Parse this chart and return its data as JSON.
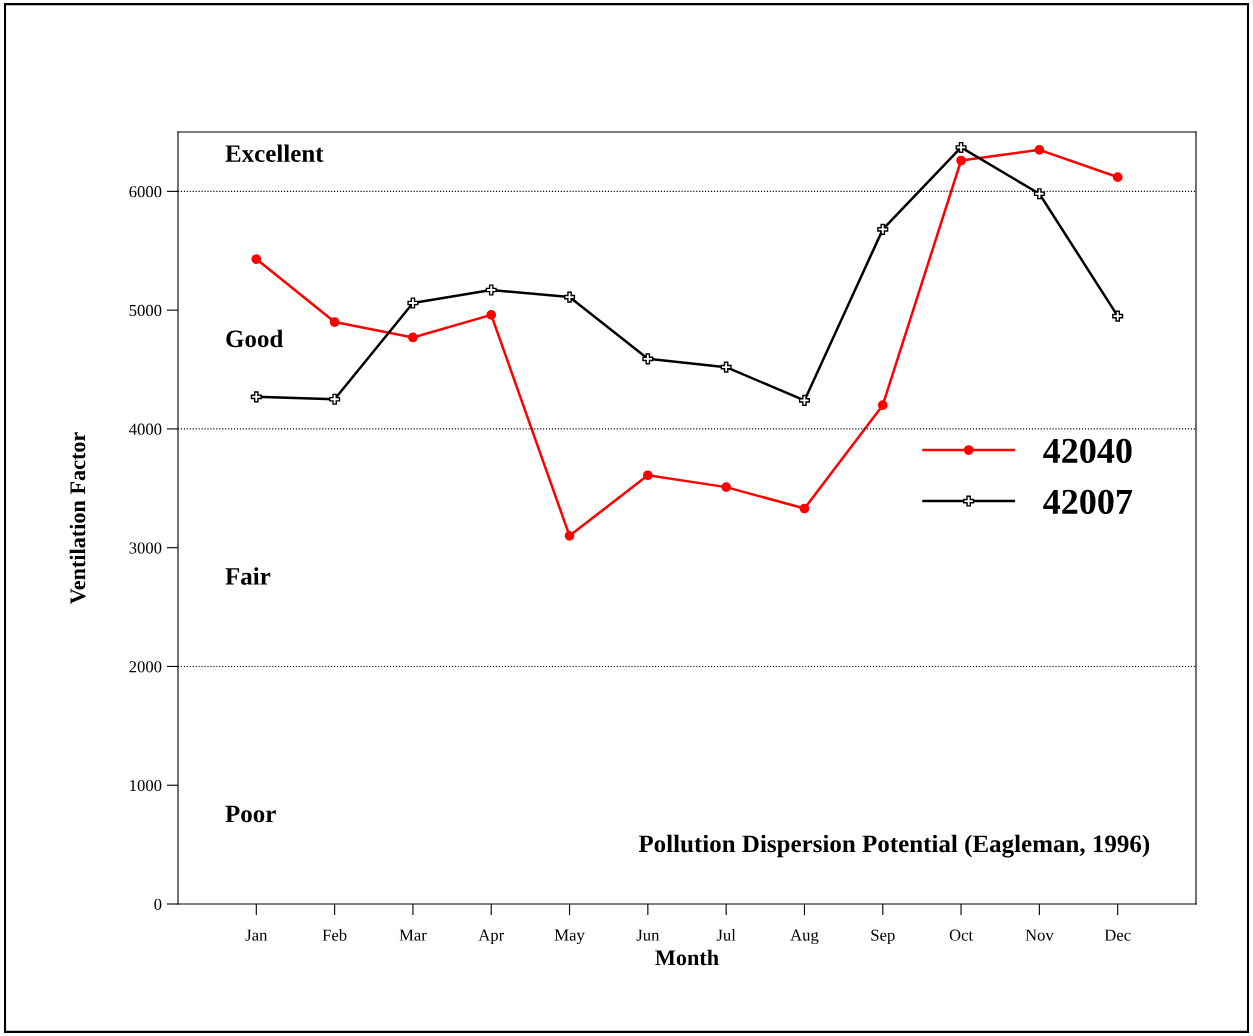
{
  "chart_data": {
    "type": "line",
    "xlabel": "Month",
    "ylabel": "Ventilation Factor",
    "categories": [
      "Jan",
      "Feb",
      "Mar",
      "Apr",
      "May",
      "Jun",
      "Jul",
      "Aug",
      "Sep",
      "Oct",
      "Nov",
      "Dec"
    ],
    "series": [
      {
        "name": "42040",
        "color": "#ff0000",
        "marker": "circle",
        "values": [
          5430,
          4900,
          4770,
          4960,
          3100,
          3610,
          3510,
          3330,
          4200,
          6260,
          6350,
          6120
        ]
      },
      {
        "name": "42007",
        "color": "#000000",
        "marker": "cross",
        "values": [
          4270,
          4250,
          5060,
          5170,
          5110,
          4590,
          4520,
          4240,
          5680,
          6370,
          5980,
          4950
        ]
      }
    ],
    "ylim": [
      0,
      6500
    ],
    "yticks": [
      0,
      1000,
      2000,
      3000,
      4000,
      5000,
      6000
    ],
    "ref_lines": [
      {
        "axis": "y",
        "value": 2000,
        "line_style": "dotted",
        "color": "#000000"
      },
      {
        "axis": "y",
        "value": 4000,
        "line_style": "dotted",
        "color": "#000000"
      },
      {
        "axis": "y",
        "value": 6000,
        "line_style": "dotted",
        "color": "#000000"
      }
    ],
    "annotations": [
      "Poor",
      "Fair",
      "Good",
      "Excellent",
      "Pollution Dispersion Potential (Eagleman, 1996)"
    ],
    "legend": "right",
    "grid": false,
    "line_style": "solid"
  }
}
